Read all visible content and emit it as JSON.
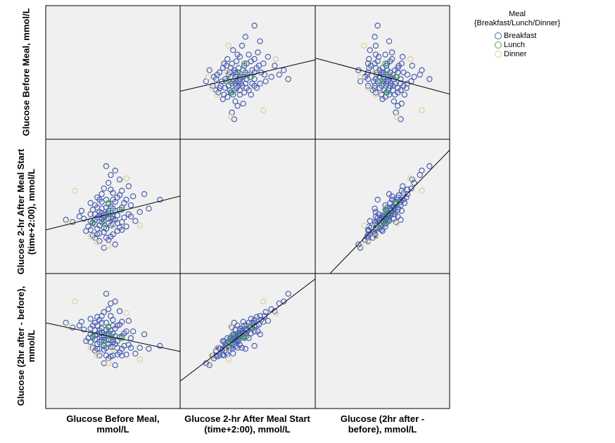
{
  "chart_data": {
    "type": "scatter",
    "subtype": "scatterplot-matrix",
    "variables": [
      "Glucose Before Meal, mmol/L",
      "Glucose 2-hr After Meal Start (time+2:00), mmol/L",
      "Glucose (2hr after - before), mmol/L"
    ],
    "row_labels": [
      "Glucose Before Meal, mmol/L",
      "Glucose 2-hr After Meal Start (time+2:00), mmol/L",
      "Glucose (2hr after - before), mmol/L"
    ],
    "col_labels": [
      "Glucose Before Meal, mmol/L",
      "Glucose 2-hr After Meal Start (time+2:00), mmol/L",
      "Glucose (2hr after - before), mmol/L"
    ],
    "ranges": [
      [
        3,
        9
      ],
      [
        2,
        14
      ],
      [
        -6,
        8
      ]
    ],
    "fit_lines": "linear, total",
    "grid": false,
    "legend": {
      "position": "right",
      "title": "Meal",
      "subtitle": "{Breakfast/Lunch/Dinner}",
      "groups": [
        "Breakfast",
        "Lunch",
        "Dinner"
      ],
      "colors": [
        "#4a5fb0",
        "#3dae4b",
        "#d9cf9b"
      ]
    },
    "points_format": "[before, after2hr, meal_index]",
    "points": [
      [
        5.6,
        7.2,
        0
      ],
      [
        5.8,
        6.9,
        0
      ],
      [
        5.4,
        7.5,
        0
      ],
      [
        6.0,
        7.1,
        0
      ],
      [
        5.2,
        6.4,
        0
      ],
      [
        5.9,
        8.0,
        0
      ],
      [
        6.3,
        7.7,
        0
      ],
      [
        5.5,
        6.6,
        0
      ],
      [
        5.7,
        7.9,
        0
      ],
      [
        6.1,
        6.8,
        0
      ],
      [
        4.9,
        6.2,
        0
      ],
      [
        5.3,
        7.0,
        0
      ],
      [
        6.5,
        8.3,
        0
      ],
      [
        5.0,
        5.9,
        0
      ],
      [
        5.6,
        6.1,
        0
      ],
      [
        6.2,
        8.8,
        0
      ],
      [
        5.8,
        7.4,
        0
      ],
      [
        5.4,
        5.6,
        0
      ],
      [
        6.0,
        9.2,
        0
      ],
      [
        5.1,
        7.7,
        0
      ],
      [
        6.7,
        7.3,
        0
      ],
      [
        5.9,
        6.3,
        0
      ],
      [
        5.5,
        8.4,
        0
      ],
      [
        6.4,
        6.6,
        0
      ],
      [
        5.2,
        8.1,
        0
      ],
      [
        5.7,
        5.2,
        0
      ],
      [
        6.1,
        7.6,
        0
      ],
      [
        4.7,
        6.9,
        0
      ],
      [
        6.8,
        8.1,
        0
      ],
      [
        5.3,
        6.0,
        0
      ],
      [
        5.6,
        9.6,
        0
      ],
      [
        6.0,
        5.5,
        0
      ],
      [
        5.8,
        10.1,
        0
      ],
      [
        5.4,
        4.9,
        0
      ],
      [
        6.3,
        9.0,
        0
      ],
      [
        5.0,
        7.3,
        0
      ],
      [
        6.6,
        6.2,
        0
      ],
      [
        5.9,
        7.0,
        0
      ],
      [
        5.5,
        7.8,
        0
      ],
      [
        6.2,
        5.8,
        0
      ],
      [
        4.5,
        7.1,
        0
      ],
      [
        7.2,
        7.5,
        0
      ],
      [
        5.7,
        8.6,
        0
      ],
      [
        6.0,
        6.4,
        0
      ],
      [
        5.1,
        5.4,
        0
      ],
      [
        6.4,
        9.4,
        0
      ],
      [
        5.6,
        6.7,
        0
      ],
      [
        5.8,
        5.0,
        0
      ],
      [
        6.9,
        8.9,
        0
      ],
      [
        5.3,
        8.8,
        0
      ],
      [
        4.2,
        6.6,
        0
      ],
      [
        7.6,
        7.8,
        0
      ],
      [
        5.9,
        10.8,
        0
      ],
      [
        5.4,
        7.2,
        0
      ],
      [
        6.1,
        4.6,
        0
      ],
      [
        6.5,
        7.0,
        0
      ],
      [
        5.2,
        6.8,
        0
      ],
      [
        5.7,
        7.3,
        0
      ],
      [
        6.3,
        6.1,
        0
      ],
      [
        5.0,
        8.3,
        0
      ],
      [
        6.0,
        7.8,
        0
      ],
      [
        5.6,
        5.7,
        0
      ],
      [
        5.5,
        9.1,
        0
      ],
      [
        6.2,
        7.2,
        0
      ],
      [
        4.8,
        5.8,
        0
      ],
      [
        6.7,
        9.8,
        0
      ],
      [
        5.8,
        6.5,
        0
      ],
      [
        5.3,
        7.9,
        0
      ],
      [
        6.4,
        7.9,
        0
      ],
      [
        5.9,
        5.3,
        0
      ],
      [
        3.9,
        6.8,
        0
      ],
      [
        8.1,
        8.6,
        0
      ],
      [
        5.7,
        11.6,
        0
      ],
      [
        6.1,
        8.4,
        0
      ],
      [
        5.4,
        6.3,
        0
      ],
      [
        5.6,
        7.0,
        0
      ],
      [
        6.0,
        6.9,
        0
      ],
      [
        5.8,
        8.2,
        0
      ],
      [
        5.2,
        5.2,
        0
      ],
      [
        6.6,
        8.6,
        0
      ],
      [
        5.5,
        7.4,
        0
      ],
      [
        6.3,
        10.4,
        0
      ],
      [
        5.1,
        6.5,
        0
      ],
      [
        7.0,
        6.7,
        0
      ],
      [
        5.9,
        9.5,
        0
      ],
      [
        5.7,
        6.0,
        0
      ],
      [
        6.2,
        6.5,
        0
      ],
      [
        4.6,
        7.6,
        0
      ],
      [
        5.4,
        8.6,
        0
      ],
      [
        6.8,
        7.1,
        0
      ],
      [
        5.6,
        4.3,
        0
      ],
      [
        7.4,
        9.1,
        0
      ],
      [
        5.0,
        6.7,
        0
      ],
      [
        6.1,
        11.2,
        0
      ],
      [
        5.3,
        5.5,
        0
      ],
      [
        5.8,
        7.6,
        0
      ],
      [
        6.4,
        5.9,
        0
      ],
      [
        5.5,
        6.9,
        0
      ],
      [
        6.0,
        8.6,
        0
      ],
      [
        5.2,
        7.3,
        0
      ],
      [
        5.8,
        8.3,
        1
      ],
      [
        5.6,
        6.4,
        1
      ],
      [
        5.1,
        6.6,
        1
      ],
      [
        6.4,
        7.7,
        1
      ],
      [
        5.9,
        7.4,
        1
      ],
      [
        4.3,
        9.4,
        2
      ],
      [
        4.0,
        6.5,
        2
      ],
      [
        6.6,
        10.5,
        2
      ],
      [
        5.0,
        5.3,
        2
      ],
      [
        7.2,
        6.3,
        2
      ],
      [
        5.3,
        4.8,
        2
      ],
      [
        6.0,
        6.2,
        2
      ],
      [
        5.8,
        4.5,
        2
      ]
    ]
  }
}
